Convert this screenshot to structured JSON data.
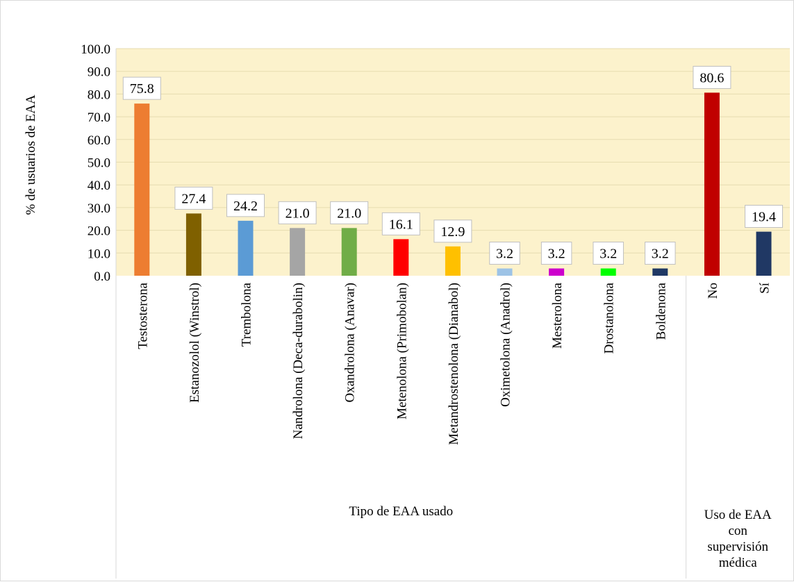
{
  "chart_data": {
    "type": "bar",
    "ylabel": "% de usuarios de EAA",
    "ylim": [
      0,
      100
    ],
    "y_ticks": [
      "0.0",
      "10.0",
      "20.0",
      "30.0",
      "40.0",
      "50.0",
      "60.0",
      "70.0",
      "80.0",
      "90.0",
      "100.0"
    ],
    "grid": true,
    "plot_background": "#fcf2cc",
    "gridline_color": "#e6dcb0",
    "groups": [
      {
        "label": "Tipo de EAA usado",
        "categories": [
          "Testosterona",
          "Estanozolol (Winstrol)",
          "Trembolona",
          "Nandrolona (Deca-durabolin)",
          "Oxandrolona (Anavar)",
          "Metenolona (Primobolan)",
          "Metandrostenolona (Dianabol)",
          "Oximetolona (Anadrol)",
          "Mesterolona",
          "Drostanolona",
          "Boldenona"
        ],
        "values": [
          75.8,
          27.4,
          24.2,
          21.0,
          21.0,
          16.1,
          12.9,
          3.2,
          3.2,
          3.2,
          3.2
        ],
        "data_labels": [
          "75.8",
          "27.4",
          "24.2",
          "21.0",
          "21.0",
          "16.1",
          "12.9",
          "3.2",
          "3.2",
          "3.2",
          "3.2"
        ],
        "colors": [
          "#ed7d31",
          "#7f6000",
          "#5b9bd5",
          "#a5a5a5",
          "#70ad47",
          "#ff0000",
          "#ffc000",
          "#9dc3e6",
          "#cc00cc",
          "#00ff00",
          "#1f3864"
        ]
      },
      {
        "label_lines": [
          "Uso de EAA",
          "con",
          "supervisión",
          "médica"
        ],
        "categories": [
          "No",
          "Sí"
        ],
        "values": [
          80.6,
          19.4
        ],
        "data_labels": [
          "80.6",
          "19.4"
        ],
        "colors": [
          "#c00000",
          "#203864"
        ]
      }
    ]
  }
}
